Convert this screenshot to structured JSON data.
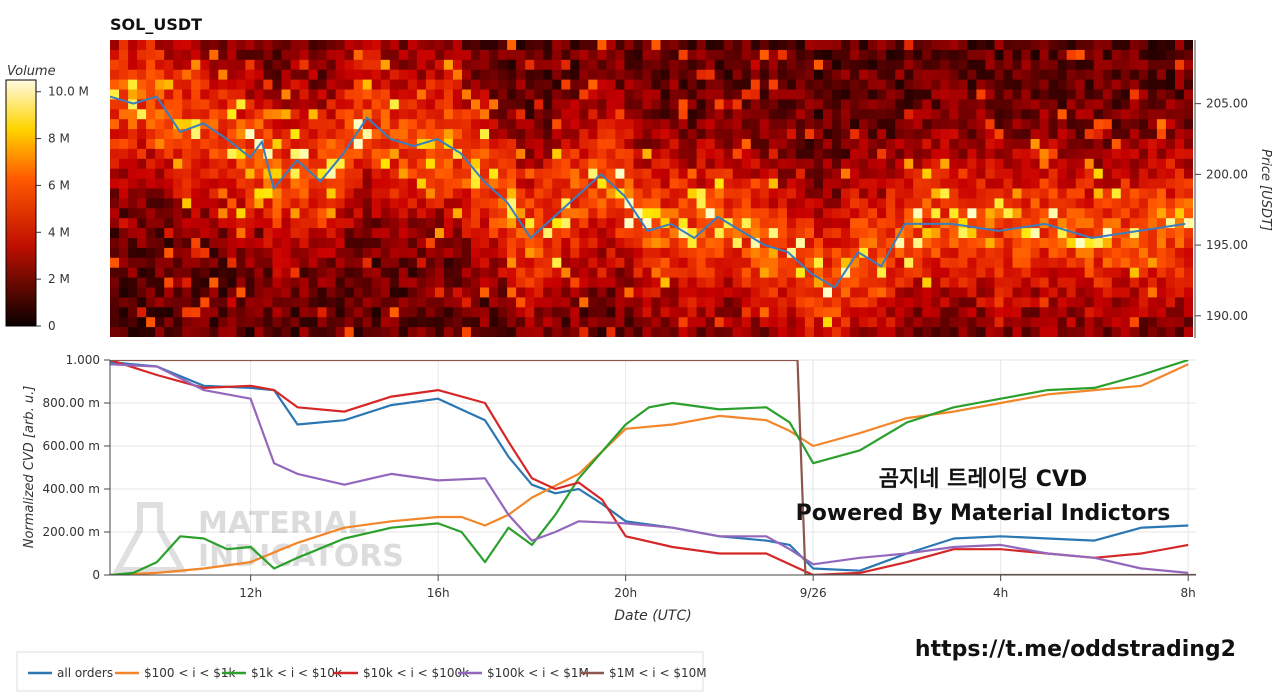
{
  "chart_data": [
    {
      "type": "heatmap",
      "title": "SOL_USDT",
      "ylabel": "Price [USDT]",
      "ylim": [
        188.5,
        209.5
      ],
      "yticks": [
        "205.00",
        "200.00",
        "195.00",
        "190.00"
      ],
      "colorbar_label": "Volume",
      "colorbar_ticks": [
        "10.0 M",
        "8 M",
        "6 M",
        "4 M",
        "2 M",
        "0"
      ],
      "colorbar_range": [
        0,
        10.5
      ],
      "x_range": [
        "2023-09-25T09:00",
        "2023-09-26T08:10"
      ],
      "price_series": {
        "name": "price",
        "color": "#3b7dbf",
        "t": [
          "2023-09-25T09:00",
          "2023-09-25T09:30",
          "2023-09-25T10:00",
          "2023-09-25T10:30",
          "2023-09-25T11:00",
          "2023-09-25T11:30",
          "2023-09-25T12:00",
          "2023-09-25T12:15",
          "2023-09-25T12:30",
          "2023-09-25T13:00",
          "2023-09-25T13:30",
          "2023-09-25T14:00",
          "2023-09-25T14:30",
          "2023-09-25T15:00",
          "2023-09-25T15:30",
          "2023-09-25T16:00",
          "2023-09-25T16:30",
          "2023-09-25T17:00",
          "2023-09-25T17:30",
          "2023-09-25T18:00",
          "2023-09-25T18:30",
          "2023-09-25T19:00",
          "2023-09-25T19:30",
          "2023-09-25T20:00",
          "2023-09-25T20:30",
          "2023-09-25T21:00",
          "2023-09-25T21:30",
          "2023-09-25T22:00",
          "2023-09-25T22:30",
          "2023-09-25T23:00",
          "2023-09-25T23:30",
          "2023-09-26T00:00",
          "2023-09-26T00:30",
          "2023-09-26T01:00",
          "2023-09-26T01:30",
          "2023-09-26T02:00",
          "2023-09-26T03:00",
          "2023-09-26T04:00",
          "2023-09-26T05:00",
          "2023-09-26T06:00",
          "2023-09-26T07:00",
          "2023-09-26T08:00"
        ],
        "price": [
          205.5,
          205.0,
          205.5,
          203.0,
          203.6,
          202.5,
          201.2,
          202.3,
          199.0,
          201.0,
          199.5,
          201.5,
          204.0,
          202.5,
          202.0,
          202.5,
          201.5,
          199.5,
          198.0,
          195.5,
          197.0,
          198.5,
          200.0,
          198.5,
          196.0,
          196.5,
          195.5,
          197.0,
          196.0,
          195.0,
          194.5,
          193.0,
          192.0,
          194.5,
          193.5,
          196.5,
          196.5,
          196.0,
          196.5,
          195.5,
          196.0,
          196.5
        ]
      }
    },
    {
      "type": "line",
      "xlabel": "Date (UTC)",
      "ylabel": "Normalized CVD [arb. u.]",
      "ylim": [
        0,
        1
      ],
      "x_range": [
        "2023-09-25T09:00",
        "2023-09-26T08:10"
      ],
      "x_ticks": [
        {
          "t": "2023-09-25T12:00",
          "label": "12h"
        },
        {
          "t": "2023-09-25T16:00",
          "label": "16h"
        },
        {
          "t": "2023-09-25T20:00",
          "label": "20h"
        },
        {
          "t": "2023-09-26T00:00",
          "label": "9/26"
        },
        {
          "t": "2023-09-26T04:00",
          "label": "4h"
        },
        {
          "t": "2023-09-26T08:00",
          "label": "8h"
        }
      ],
      "y_ticks": [
        {
          "v": 0,
          "label": "0"
        },
        {
          "v": 0.2,
          "label": "200.00 m"
        },
        {
          "v": 0.4,
          "label": "400.00 m"
        },
        {
          "v": 0.6,
          "label": "600.00 m"
        },
        {
          "v": 0.8,
          "label": "800.00 m"
        },
        {
          "v": 1.0,
          "label": "1.000"
        }
      ],
      "grid": true,
      "legend_position": "bottom",
      "series": [
        {
          "name": "all orders",
          "color": "#2a77b4",
          "t": [
            "2023-09-25T09:00",
            "2023-09-25T10:00",
            "2023-09-25T11:00",
            "2023-09-25T12:00",
            "2023-09-25T12:30",
            "2023-09-25T13:00",
            "2023-09-25T14:00",
            "2023-09-25T15:00",
            "2023-09-25T16:00",
            "2023-09-25T17:00",
            "2023-09-25T17:30",
            "2023-09-25T18:00",
            "2023-09-25T18:30",
            "2023-09-25T19:00",
            "2023-09-25T19:30",
            "2023-09-25T20:00",
            "2023-09-25T21:00",
            "2023-09-25T22:00",
            "2023-09-25T23:00",
            "2023-09-25T23:30",
            "2023-09-26T00:00",
            "2023-09-26T01:00",
            "2023-09-26T02:00",
            "2023-09-26T03:00",
            "2023-09-26T04:00",
            "2023-09-26T05:00",
            "2023-09-26T06:00",
            "2023-09-26T07:00",
            "2023-09-26T08:00"
          ],
          "y": [
            0.99,
            0.97,
            0.88,
            0.87,
            0.86,
            0.7,
            0.72,
            0.79,
            0.82,
            0.72,
            0.55,
            0.42,
            0.38,
            0.4,
            0.33,
            0.25,
            0.22,
            0.18,
            0.16,
            0.14,
            0.03,
            0.02,
            0.1,
            0.17,
            0.18,
            0.17,
            0.16,
            0.22,
            0.23
          ]
        },
        {
          "name": "$100 < i < $1k",
          "color": "#f2862a",
          "t": [
            "2023-09-25T09:00",
            "2023-09-25T10:00",
            "2023-09-25T11:00",
            "2023-09-25T12:00",
            "2023-09-25T13:00",
            "2023-09-25T14:00",
            "2023-09-25T15:00",
            "2023-09-25T16:00",
            "2023-09-25T16:30",
            "2023-09-25T17:00",
            "2023-09-25T17:30",
            "2023-09-25T18:00",
            "2023-09-25T19:00",
            "2023-09-25T20:00",
            "2023-09-25T21:00",
            "2023-09-25T22:00",
            "2023-09-25T23:00",
            "2023-09-25T23:30",
            "2023-09-26T00:00",
            "2023-09-26T01:00",
            "2023-09-26T02:00",
            "2023-09-26T03:00",
            "2023-09-26T04:00",
            "2023-09-26T05:00",
            "2023-09-26T06:00",
            "2023-09-26T07:00",
            "2023-09-26T08:00"
          ],
          "y": [
            0.0,
            0.01,
            0.03,
            0.06,
            0.15,
            0.22,
            0.25,
            0.27,
            0.27,
            0.23,
            0.28,
            0.36,
            0.47,
            0.68,
            0.7,
            0.74,
            0.72,
            0.67,
            0.6,
            0.66,
            0.73,
            0.76,
            0.8,
            0.84,
            0.86,
            0.88,
            0.98
          ]
        },
        {
          "name": "$1k < i < $10k",
          "color": "#2ca02c",
          "t": [
            "2023-09-25T09:00",
            "2023-09-25T09:30",
            "2023-09-25T10:00",
            "2023-09-25T10:30",
            "2023-09-25T11:00",
            "2023-09-25T11:30",
            "2023-09-25T12:00",
            "2023-09-25T12:30",
            "2023-09-25T13:00",
            "2023-09-25T14:00",
            "2023-09-25T15:00",
            "2023-09-25T16:00",
            "2023-09-25T16:30",
            "2023-09-25T17:00",
            "2023-09-25T17:30",
            "2023-09-25T18:00",
            "2023-09-25T18:30",
            "2023-09-25T19:00",
            "2023-09-25T20:00",
            "2023-09-25T20:30",
            "2023-09-25T21:00",
            "2023-09-25T22:00",
            "2023-09-25T23:00",
            "2023-09-25T23:30",
            "2023-09-26T00:00",
            "2023-09-26T01:00",
            "2023-09-26T02:00",
            "2023-09-26T03:00",
            "2023-09-26T04:00",
            "2023-09-26T05:00",
            "2023-09-26T06:00",
            "2023-09-26T07:00",
            "2023-09-26T08:00"
          ],
          "y": [
            0.0,
            0.01,
            0.06,
            0.18,
            0.17,
            0.12,
            0.13,
            0.03,
            0.08,
            0.17,
            0.22,
            0.24,
            0.2,
            0.06,
            0.22,
            0.14,
            0.28,
            0.45,
            0.7,
            0.78,
            0.8,
            0.77,
            0.78,
            0.71,
            0.52,
            0.58,
            0.71,
            0.78,
            0.82,
            0.86,
            0.87,
            0.93,
            1.0
          ]
        },
        {
          "name": "$10k < i < $100k",
          "color": "#d62728",
          "t": [
            "2023-09-25T09:00",
            "2023-09-25T10:00",
            "2023-09-25T11:00",
            "2023-09-25T12:00",
            "2023-09-25T12:30",
            "2023-09-25T13:00",
            "2023-09-25T14:00",
            "2023-09-25T15:00",
            "2023-09-25T16:00",
            "2023-09-25T17:00",
            "2023-09-25T17:30",
            "2023-09-25T18:00",
            "2023-09-25T18:30",
            "2023-09-25T19:00",
            "2023-09-25T19:30",
            "2023-09-25T20:00",
            "2023-09-25T21:00",
            "2023-09-25T22:00",
            "2023-09-25T23:00",
            "2023-09-25T23:30",
            "2023-09-26T00:00",
            "2023-09-26T01:00",
            "2023-09-26T02:00",
            "2023-09-26T03:00",
            "2023-09-26T04:00",
            "2023-09-26T05:00",
            "2023-09-26T06:00",
            "2023-09-26T07:00",
            "2023-09-26T08:00"
          ],
          "y": [
            1.0,
            0.93,
            0.87,
            0.88,
            0.86,
            0.78,
            0.76,
            0.83,
            0.86,
            0.8,
            0.62,
            0.45,
            0.4,
            0.43,
            0.35,
            0.18,
            0.13,
            0.1,
            0.1,
            0.05,
            0.0,
            0.01,
            0.06,
            0.12,
            0.12,
            0.1,
            0.08,
            0.1,
            0.14
          ]
        },
        {
          "name": "$100k < i < $1M",
          "color": "#9467bd",
          "t": [
            "2023-09-25T09:00",
            "2023-09-25T10:00",
            "2023-09-25T11:00",
            "2023-09-25T12:00",
            "2023-09-25T12:30",
            "2023-09-25T13:00",
            "2023-09-25T14:00",
            "2023-09-25T15:00",
            "2023-09-25T16:00",
            "2023-09-25T17:00",
            "2023-09-25T17:30",
            "2023-09-25T18:00",
            "2023-09-25T18:30",
            "2023-09-25T19:00",
            "2023-09-25T20:00",
            "2023-09-25T21:00",
            "2023-09-25T22:00",
            "2023-09-25T23:00",
            "2023-09-25T23:30",
            "2023-09-26T00:00",
            "2023-09-26T01:00",
            "2023-09-26T02:00",
            "2023-09-26T03:00",
            "2023-09-26T04:00",
            "2023-09-26T05:00",
            "2023-09-26T06:00",
            "2023-09-26T07:00",
            "2023-09-26T08:00"
          ],
          "y": [
            0.98,
            0.97,
            0.86,
            0.82,
            0.52,
            0.47,
            0.42,
            0.47,
            0.44,
            0.45,
            0.28,
            0.16,
            0.2,
            0.25,
            0.24,
            0.22,
            0.18,
            0.18,
            0.12,
            0.05,
            0.08,
            0.1,
            0.13,
            0.14,
            0.1,
            0.08,
            0.03,
            0.01
          ]
        },
        {
          "name": "$1M < i < $10M",
          "color": "#8c564b",
          "t": [
            "2023-09-25T09:00",
            "2023-09-25T23:40",
            "2023-09-25T23:50",
            "2023-09-26T08:10"
          ],
          "y": [
            1.0,
            1.0,
            0.0,
            0.0
          ]
        }
      ]
    }
  ],
  "annotation": {
    "line1": "곰지네 트레이딩 CVD",
    "line2": "Powered By Material Indictors"
  },
  "watermark": {
    "line1": "MATERIAL",
    "line2": "INDICATORS"
  },
  "footer_link": "https://t.me/oddstrading2"
}
